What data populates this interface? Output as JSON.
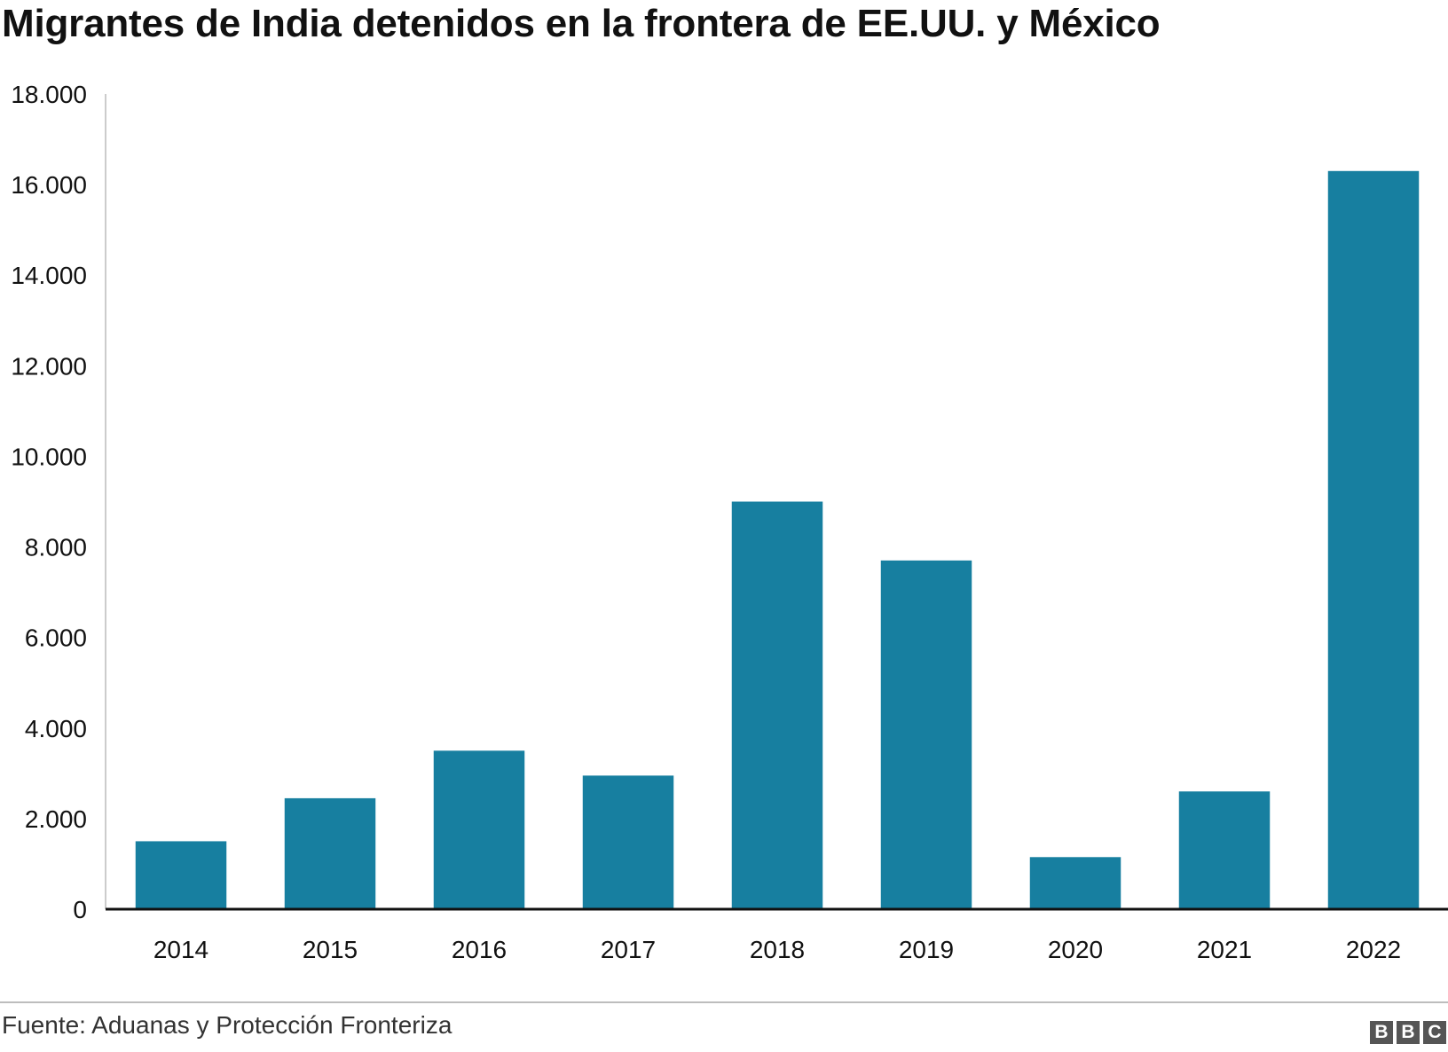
{
  "title": "Migrantes de India detenidos en la frontera de EE.UU. y México",
  "source": "Fuente: Aduanas y Protección Fronteriza",
  "logo": [
    "B",
    "B",
    "C"
  ],
  "colors": {
    "bar": "#177fa0",
    "axis": "#111111",
    "grid_axis_left": "#cccccc",
    "text": "#111111"
  },
  "chart_data": {
    "type": "bar",
    "title": "Migrantes de India detenidos en la frontera de EE.UU. y México",
    "xlabel": "",
    "ylabel": "",
    "categories": [
      "2014",
      "2015",
      "2016",
      "2017",
      "2018",
      "2019",
      "2020",
      "2021",
      "2022"
    ],
    "values": [
      1500,
      2450,
      3500,
      2950,
      9000,
      7700,
      1150,
      2600,
      16300
    ],
    "ylim": [
      0,
      18000
    ],
    "yticks": [
      0,
      2000,
      4000,
      6000,
      8000,
      10000,
      12000,
      14000,
      16000,
      18000
    ],
    "ytick_labels": [
      "0",
      "2.000",
      "4.000",
      "6.000",
      "8.000",
      "10.000",
      "12.000",
      "14.000",
      "16.000",
      "18.000"
    ],
    "grid": false,
    "legend": "none"
  }
}
